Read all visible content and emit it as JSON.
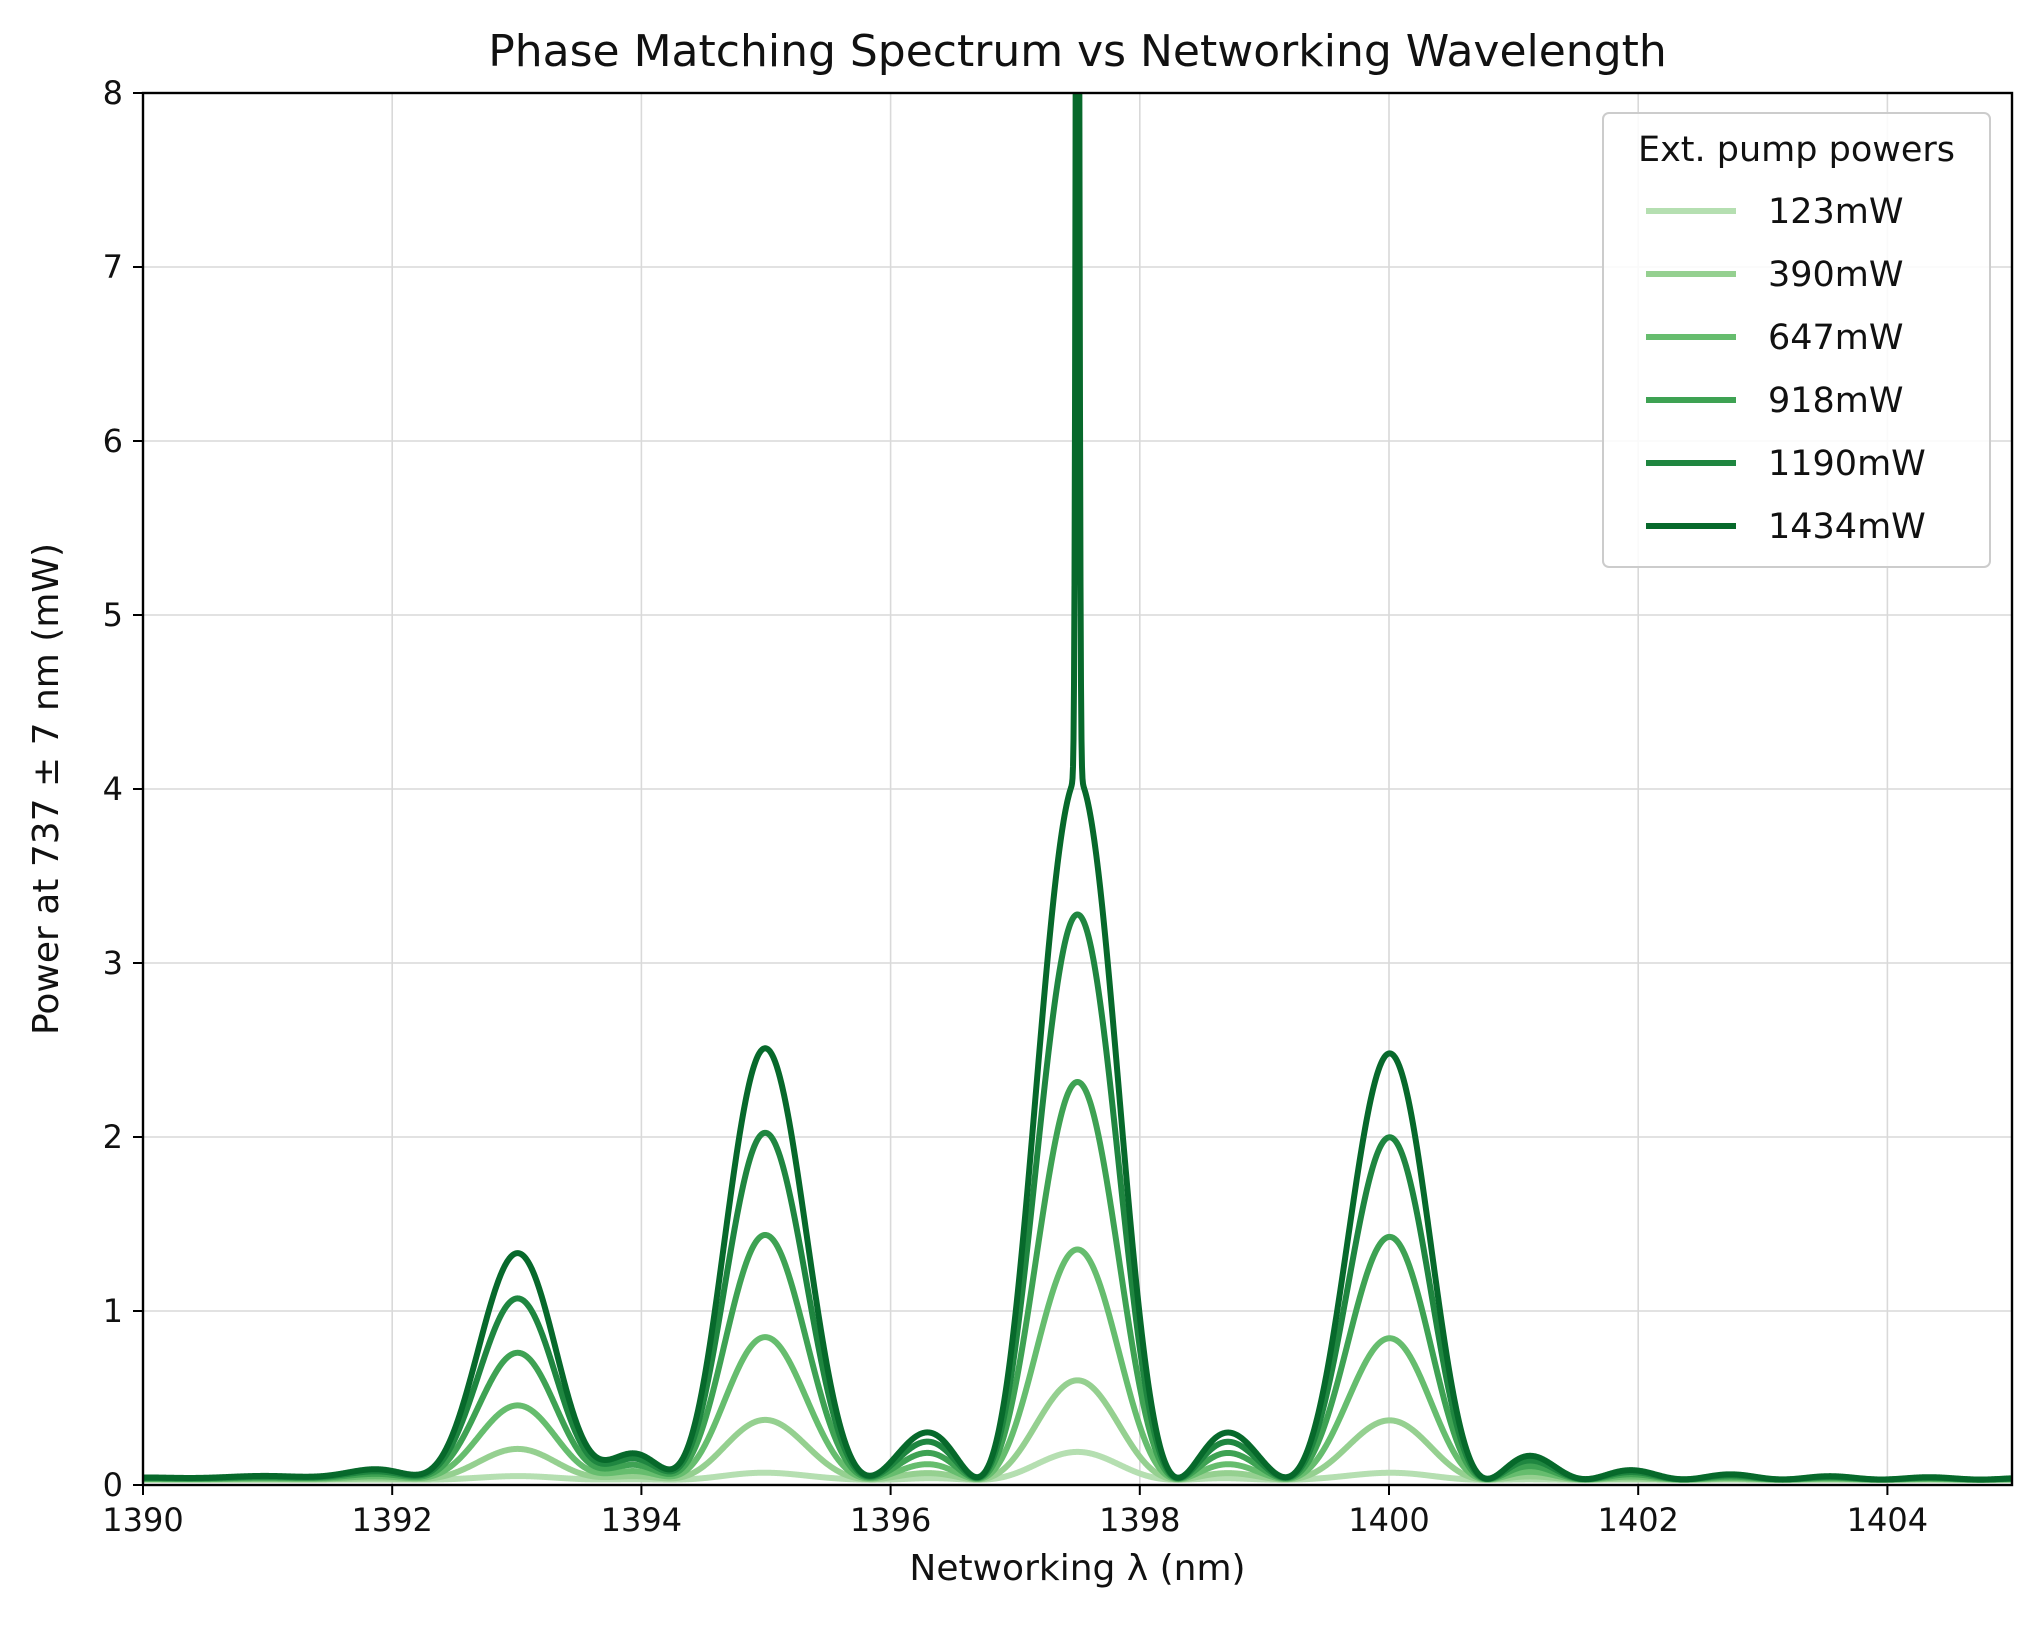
{
  "chart_data": {
    "type": "line",
    "title": "Phase Matching Spectrum vs Networking Wavelength",
    "xlabel": "Networking λ (nm)",
    "ylabel": "Power at 737 ± 7 nm (mW)",
    "xlim": [
      1390,
      1405
    ],
    "ylim": [
      0,
      8
    ],
    "x_ticks": [
      "1390",
      "1392",
      "1394",
      "1396",
      "1398",
      "1400",
      "1402",
      "1404"
    ],
    "y_ticks": [
      "0",
      "1",
      "2",
      "3",
      "4",
      "5",
      "6",
      "7",
      "8"
    ],
    "grid": true,
    "legend": {
      "title": "Ext. pump powers",
      "placement": "top-right"
    },
    "series": [
      {
        "name": "123mW",
        "color": "#b5dfb1",
        "peaks": [
          {
            "x": 1393.0,
            "y": 0.02
          },
          {
            "x": 1395.0,
            "y": 0.04
          },
          {
            "x": 1397.5,
            "y": 0.16
          },
          {
            "x": 1400.0,
            "y": 0.04
          }
        ],
        "baseline": 0.03
      },
      {
        "name": "390mW",
        "color": "#95d090",
        "peaks": [
          {
            "x": 1393.0,
            "y": 0.17
          },
          {
            "x": 1395.0,
            "y": 0.34
          },
          {
            "x": 1397.5,
            "y": 0.57
          },
          {
            "x": 1400.0,
            "y": 0.34
          }
        ],
        "baseline": 0.03
      },
      {
        "name": "647mW",
        "color": "#66bd6e",
        "peaks": [
          {
            "x": 1393.0,
            "y": 0.41
          },
          {
            "x": 1395.0,
            "y": 0.81
          },
          {
            "x": 1397.5,
            "y": 1.32
          },
          {
            "x": 1400.0,
            "y": 0.81
          }
        ],
        "baseline": 0.03
      },
      {
        "name": "918mW",
        "color": "#3ea253",
        "peaks": [
          {
            "x": 1393.0,
            "y": 0.7
          },
          {
            "x": 1395.0,
            "y": 1.39
          },
          {
            "x": 1397.5,
            "y": 2.28
          },
          {
            "x": 1400.0,
            "y": 1.39
          }
        ],
        "baseline": 0.03
      },
      {
        "name": "1190mW",
        "color": "#1f8640",
        "peaks": [
          {
            "x": 1393.0,
            "y": 1.0
          },
          {
            "x": 1395.0,
            "y": 1.97
          },
          {
            "x": 1397.5,
            "y": 3.24
          },
          {
            "x": 1400.0,
            "y": 1.96
          }
        ],
        "baseline": 0.03
      },
      {
        "name": "1434mW",
        "color": "#07692b",
        "peaks": [
          {
            "x": 1393.0,
            "y": 1.25
          },
          {
            "x": 1395.0,
            "y": 2.45
          },
          {
            "x": 1397.5,
            "y": 4.02
          },
          {
            "x": 1400.0,
            "y": 2.44
          }
        ],
        "spike": {
          "x": 1397.5,
          "y": 8.0
        },
        "baseline": 0.03
      }
    ]
  }
}
